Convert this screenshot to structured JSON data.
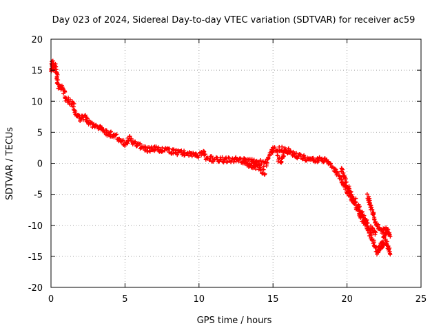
{
  "chart_data": {
    "type": "scatter",
    "title": "Day 023 of 2024, Sidereal Day-to-day VTEC variation (SDTVAR) for receiver ac59",
    "xlabel": "GPS time / hours",
    "ylabel": "SDTVAR / TECUs",
    "xlim": [
      0,
      25
    ],
    "ylim": [
      -20,
      20
    ],
    "xticks": [
      0,
      5,
      10,
      15,
      20,
      25
    ],
    "yticks": [
      -20,
      -15,
      -10,
      -5,
      0,
      5,
      10,
      15,
      20
    ],
    "grid": true,
    "marker": "+",
    "color": "#ff0000",
    "series": [
      {
        "name": "SDTVAR",
        "trend": [
          [
            0.0,
            14.8
          ],
          [
            0.1,
            16.2
          ],
          [
            0.2,
            15.2
          ],
          [
            0.3,
            15.8
          ],
          [
            0.4,
            14.0
          ],
          [
            0.5,
            12.5
          ],
          [
            0.7,
            12.3
          ],
          [
            0.9,
            11.5
          ],
          [
            1.0,
            10.5
          ],
          [
            1.2,
            10.0
          ],
          [
            1.5,
            9.5
          ],
          [
            1.7,
            8.0
          ],
          [
            2.0,
            7.2
          ],
          [
            2.3,
            7.6
          ],
          [
            2.6,
            6.6
          ],
          [
            3.0,
            6.0
          ],
          [
            3.4,
            5.8
          ],
          [
            3.8,
            4.8
          ],
          [
            4.2,
            4.6
          ],
          [
            4.6,
            4.0
          ],
          [
            5.0,
            3.0
          ],
          [
            5.3,
            4.0
          ],
          [
            5.6,
            3.2
          ],
          [
            6.0,
            2.8
          ],
          [
            6.5,
            2.2
          ],
          [
            7.0,
            2.3
          ],
          [
            7.5,
            2.2
          ],
          [
            8.0,
            2.0
          ],
          [
            8.5,
            1.8
          ],
          [
            9.0,
            1.6
          ],
          [
            9.5,
            1.5
          ],
          [
            10.0,
            1.2
          ],
          [
            10.3,
            1.8
          ],
          [
            10.5,
            0.8
          ],
          [
            11.0,
            0.7
          ],
          [
            11.5,
            0.6
          ],
          [
            12.0,
            0.5
          ],
          [
            12.5,
            0.6
          ],
          [
            13.0,
            0.4
          ],
          [
            13.5,
            0.3
          ],
          [
            14.0,
            0.2
          ],
          [
            14.5,
            -0.2
          ],
          [
            15.0,
            2.2
          ],
          [
            15.5,
            2.3
          ],
          [
            16.0,
            2.0
          ],
          [
            16.5,
            1.3
          ],
          [
            17.0,
            0.9
          ],
          [
            17.5,
            0.8
          ],
          [
            18.0,
            0.5
          ],
          [
            18.5,
            0.6
          ],
          [
            19.0,
            -0.5
          ],
          [
            19.3,
            -1.5
          ],
          [
            19.6,
            -2.5
          ],
          [
            19.8,
            -3.5
          ],
          [
            20.0,
            -4.5
          ],
          [
            20.3,
            -5.5
          ],
          [
            20.6,
            -7.0
          ],
          [
            20.9,
            -8.5
          ],
          [
            21.2,
            -9.5
          ],
          [
            21.4,
            -10.5
          ],
          [
            21.6,
            -11.5
          ],
          [
            21.8,
            -13.0
          ],
          [
            22.0,
            -14.0
          ],
          [
            22.3,
            -13.5
          ],
          [
            22.6,
            -12.5
          ],
          [
            22.8,
            -13.5
          ],
          [
            22.9,
            -15.0
          ]
        ],
        "branches": [
          [
            [
              22.0,
              -14.5
            ],
            [
              22.2,
              -13.5
            ],
            [
              22.4,
              -12.5
            ],
            [
              22.6,
              -11.5
            ],
            [
              22.8,
              -11.0
            ],
            [
              22.9,
              -11.5
            ]
          ],
          [
            [
              21.4,
              -5.2
            ],
            [
              21.6,
              -7.0
            ],
            [
              21.8,
              -8.5
            ],
            [
              22.0,
              -10.0
            ],
            [
              22.3,
              -11.0
            ],
            [
              22.6,
              -10.5
            ],
            [
              22.8,
              -11.0
            ]
          ],
          [
            [
              20.8,
              -7.0
            ],
            [
              21.0,
              -8.0
            ],
            [
              21.2,
              -9.0
            ],
            [
              21.4,
              -9.8
            ],
            [
              21.6,
              -10.5
            ],
            [
              21.8,
              -11.0
            ],
            [
              22.0,
              -11.5
            ]
          ],
          [
            [
              19.6,
              -1.0
            ],
            [
              19.8,
              -2.0
            ],
            [
              20.0,
              -3.5
            ],
            [
              20.2,
              -4.5
            ],
            [
              20.4,
              -5.5
            ],
            [
              20.6,
              -6.2
            ]
          ],
          [
            [
              13.0,
              0.5
            ],
            [
              13.4,
              -0.3
            ],
            [
              13.8,
              -0.6
            ],
            [
              14.2,
              -0.9
            ],
            [
              14.5,
              -1.8
            ]
          ],
          [
            [
              15.3,
              1.0
            ],
            [
              15.5,
              0.2
            ],
            [
              15.8,
              1.8
            ],
            [
              16.2,
              2.2
            ]
          ]
        ]
      }
    ]
  }
}
